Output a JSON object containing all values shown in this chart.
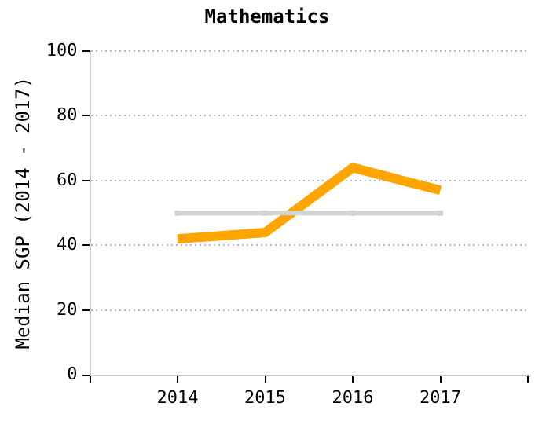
{
  "chart_data": {
    "type": "line",
    "title": "Mathematics",
    "ylabel": "Median SGP (2014 - 2017)",
    "x": [
      2014,
      2015,
      2016,
      2017
    ],
    "series": [
      {
        "color": "#d3d3d3",
        "values": [
          50,
          50,
          50,
          50
        ],
        "marker": "square"
      },
      {
        "color": "#ffa500",
        "values": [
          42,
          44,
          64,
          57
        ],
        "marker": "none"
      }
    ],
    "xlim": [
      2013,
      2018
    ],
    "xticks": [
      {
        "value": 2013,
        "label": null
      },
      2014,
      2015,
      2016,
      2017,
      {
        "value": 2018,
        "label": null
      }
    ],
    "ylim": [
      0,
      100
    ],
    "yticks": [
      0,
      20,
      40,
      60,
      80,
      100
    ],
    "grid": "y",
    "legend": false
  }
}
